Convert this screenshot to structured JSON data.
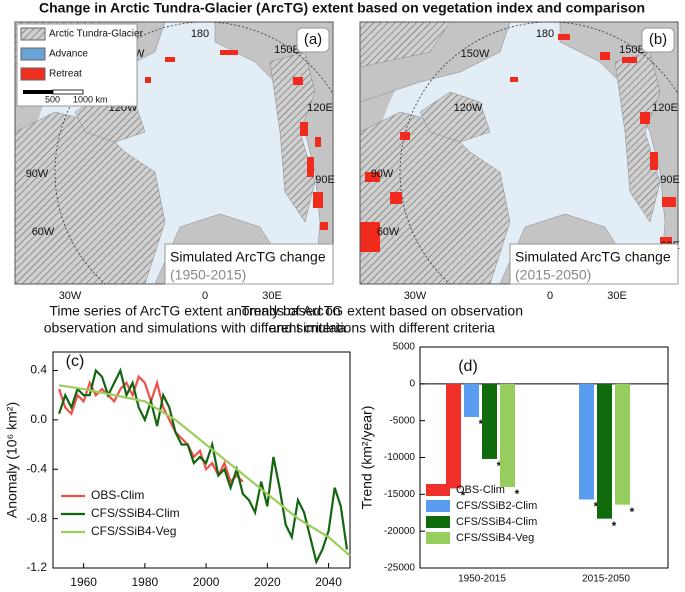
{
  "title": "Change in Arctic Tundra-Glacier (ArcTG) extent based on vegetation index and comparison",
  "map_legend": {
    "items": [
      "Arctic Tundra-Glacier",
      "Advance",
      "Retreat"
    ],
    "scale_labels": [
      "500",
      "1000 km"
    ]
  },
  "maps": [
    {
      "panel": "(a)",
      "lon_labels": [
        "180",
        "150W",
        "120W",
        "90W",
        "60W",
        "150E",
        "120E",
        "90E"
      ],
      "caption": "Simulated ArcTG change",
      "period": "(1950-2015)",
      "bottom_labels": [
        "30W",
        "0",
        "30E"
      ]
    },
    {
      "panel": "(b)",
      "lon_labels": [
        "180",
        "150W",
        "120W",
        "90W",
        "60W",
        "150E",
        "120E",
        "90E",
        "60E"
      ],
      "caption": "Simulated ArcTG change",
      "period": "(2015-2050)",
      "bottom_labels": [
        "30W",
        "0",
        "30E"
      ]
    }
  ],
  "chart_data": [
    {
      "type": "line",
      "panel": "(c)",
      "title": [
        "Time series of ArcTG extent anomaly based on",
        "observation and simulations with different criteria"
      ],
      "ylabel": "Anomaly (10⁶ km²)",
      "xlim": [
        1950,
        2047
      ],
      "xticks": [
        1960,
        1980,
        2000,
        2020,
        2040
      ],
      "ylim": [
        -1.2,
        0.55
      ],
      "yticks": [
        0.4,
        {
          "value": 0,
          "label": "0.0"
        },
        -0.4,
        -0.8,
        -1.2
      ],
      "legend": "lower-left",
      "series": [
        {
          "name": "OBS-Clim",
          "color": "#f0504a",
          "x": [
            1952,
            1954,
            1956,
            1958,
            1960,
            1962,
            1964,
            1966,
            1968,
            1970,
            1972,
            1974,
            1976,
            1978,
            1980,
            1982,
            1984,
            1986,
            1988,
            1990,
            1992,
            1994,
            1996,
            1998,
            2000,
            2002,
            2004,
            2006,
            2008,
            2010,
            2012
          ],
          "values": [
            0.25,
            0.1,
            0.05,
            0.2,
            0.15,
            0.3,
            0.2,
            0.25,
            0.2,
            0.15,
            0.25,
            0.3,
            0.2,
            0.35,
            0.3,
            0.15,
            0.3,
            0.1,
            0.0,
            -0.1,
            -0.15,
            -0.2,
            -0.3,
            -0.25,
            -0.4,
            -0.35,
            -0.45,
            -0.35,
            -0.5,
            -0.45,
            -0.5
          ]
        },
        {
          "name": "CFS/SSiB4-Clim",
          "color": "#13650f",
          "x": [
            1952,
            1954,
            1956,
            1958,
            1960,
            1962,
            1964,
            1966,
            1968,
            1970,
            1972,
            1974,
            1976,
            1978,
            1980,
            1982,
            1984,
            1986,
            1988,
            1990,
            1992,
            1994,
            1996,
            1998,
            2000,
            2002,
            2004,
            2006,
            2008,
            2010,
            2012,
            2014,
            2016,
            2018,
            2020,
            2022,
            2024,
            2026,
            2028,
            2030,
            2032,
            2034,
            2036,
            2038,
            2040,
            2042,
            2044,
            2046
          ],
          "values": [
            0.05,
            0.2,
            0.1,
            0.25,
            0.2,
            0.2,
            0.4,
            0.35,
            0.2,
            0.3,
            0.4,
            0.2,
            0.3,
            0.1,
            0.0,
            0.15,
            -0.05,
            0.2,
            0.1,
            -0.1,
            -0.2,
            -0.2,
            -0.35,
            -0.3,
            -0.35,
            -0.2,
            -0.45,
            -0.4,
            -0.55,
            -0.4,
            -0.6,
            -0.65,
            -0.75,
            -0.5,
            -0.7,
            -0.3,
            -0.55,
            -0.85,
            -0.95,
            -0.65,
            -0.75,
            -0.95,
            -1.15,
            -1.05,
            -0.9,
            -0.55,
            -0.7,
            -1.05
          ]
        },
        {
          "name": "CFS/SSiB4-Veg",
          "color": "#9ccc5a",
          "x": [
            1952,
            1960,
            1970,
            1980,
            1990,
            2000,
            2010,
            2020,
            2030,
            2040,
            2047
          ],
          "values": [
            0.28,
            0.25,
            0.2,
            0.15,
            0.0,
            -0.2,
            -0.4,
            -0.6,
            -0.8,
            -0.95,
            -1.1
          ]
        }
      ]
    },
    {
      "type": "bar",
      "panel": "(d)",
      "title": [
        "Trends of ArcTG extent based on observation",
        "and simulations with different criteria"
      ],
      "ylabel": "Trend  (km²/year)",
      "marker_label": "*",
      "categories": [
        "1950-2015",
        "2015-2050"
      ],
      "ylim": [
        -25000,
        5000
      ],
      "yticks": [
        5000,
        0,
        -5000,
        -10000,
        -15000,
        -20000,
        -25000
      ],
      "legend": "lower-left",
      "series": [
        {
          "name": "OBS-Clim",
          "color": "#f0312b",
          "values": [
            -14200,
            null
          ]
        },
        {
          "name": "CFS/SSiB2-Clim",
          "color": "#5a9cf0",
          "values": [
            -4500,
            -15700
          ]
        },
        {
          "name": "CFS/SSiB4-Clim",
          "color": "#0f6b0c",
          "values": [
            -10200,
            -18300
          ]
        },
        {
          "name": "CFS/SSiB4-Veg",
          "color": "#97cc5e",
          "values": [
            -14000,
            -16400
          ]
        }
      ]
    }
  ]
}
